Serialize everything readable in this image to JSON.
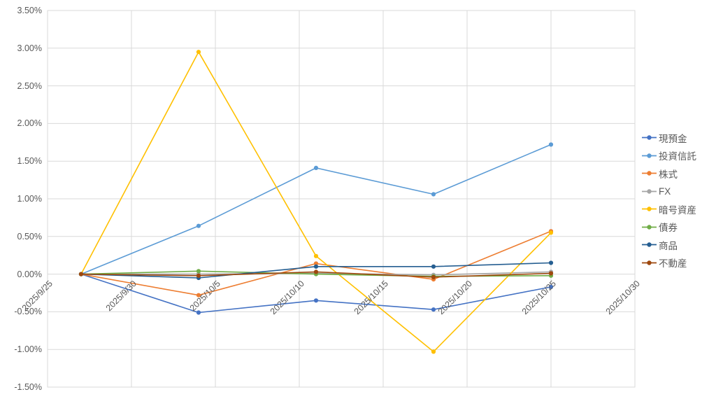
{
  "chart_data": {
    "type": "line",
    "title": "",
    "xlabel": "",
    "ylabel": "",
    "unit": "percent",
    "x": [
      "2025/9/27",
      "2025/10/4",
      "2025/10/11",
      "2025/10/18",
      "2025/10/25"
    ],
    "series": [
      {
        "name": "現預金",
        "color": "#4472C4",
        "values": [
          0.0,
          -0.51,
          -0.35,
          -0.47,
          -0.17
        ]
      },
      {
        "name": "投資信託",
        "color": "#5B9BD5",
        "values": [
          0.0,
          0.64,
          1.41,
          1.06,
          1.72
        ]
      },
      {
        "name": "株式",
        "color": "#ED7D31",
        "values": [
          0.0,
          -0.28,
          0.14,
          -0.07,
          0.57
        ]
      },
      {
        "name": "FX",
        "color": "#A5A5A5",
        "values": [
          0.0,
          0.0,
          0.01,
          -0.01,
          0.03
        ]
      },
      {
        "name": "暗号資産",
        "color": "#FFC000",
        "values": [
          0.0,
          2.95,
          0.24,
          -1.03,
          0.55
        ]
      },
      {
        "name": "債券",
        "color": "#70AD47",
        "values": [
          0.0,
          0.04,
          0.0,
          -0.03,
          -0.02
        ]
      },
      {
        "name": "商品",
        "color": "#255E91",
        "values": [
          0.0,
          -0.05,
          0.1,
          0.1,
          0.15
        ]
      },
      {
        "name": "不動産",
        "color": "#9E480E",
        "values": [
          0.0,
          -0.02,
          0.03,
          -0.04,
          0.01
        ]
      }
    ],
    "x_axis": {
      "labels": [
        "2025/9/25",
        "2025/9/30",
        "2025/10/5",
        "2025/10/10",
        "2025/10/15",
        "2025/10/20",
        "2025/10/25",
        "2025/10/30"
      ],
      "tick_interval_days": 5,
      "label_rotation_deg": 45
    },
    "y_axis": {
      "min": -1.5,
      "max": 3.5,
      "step": 0.5,
      "labels": [
        "3.50%",
        "3.00%",
        "2.50%",
        "2.00%",
        "1.50%",
        "1.00%",
        "0.50%",
        "0.00%",
        "-0.50%",
        "-1.00%",
        "-1.50%"
      ]
    },
    "legend": {
      "position": "right",
      "items": [
        "現預金",
        "投資信託",
        "株式",
        "FX",
        "暗号資産",
        "債券",
        "商品",
        "不動産"
      ]
    },
    "grid": true,
    "colors": {
      "gridline": "#D9D9D9",
      "plot_border": "#D9D9D9",
      "tick_text": "#595959",
      "background": "#FFFFFF"
    }
  }
}
